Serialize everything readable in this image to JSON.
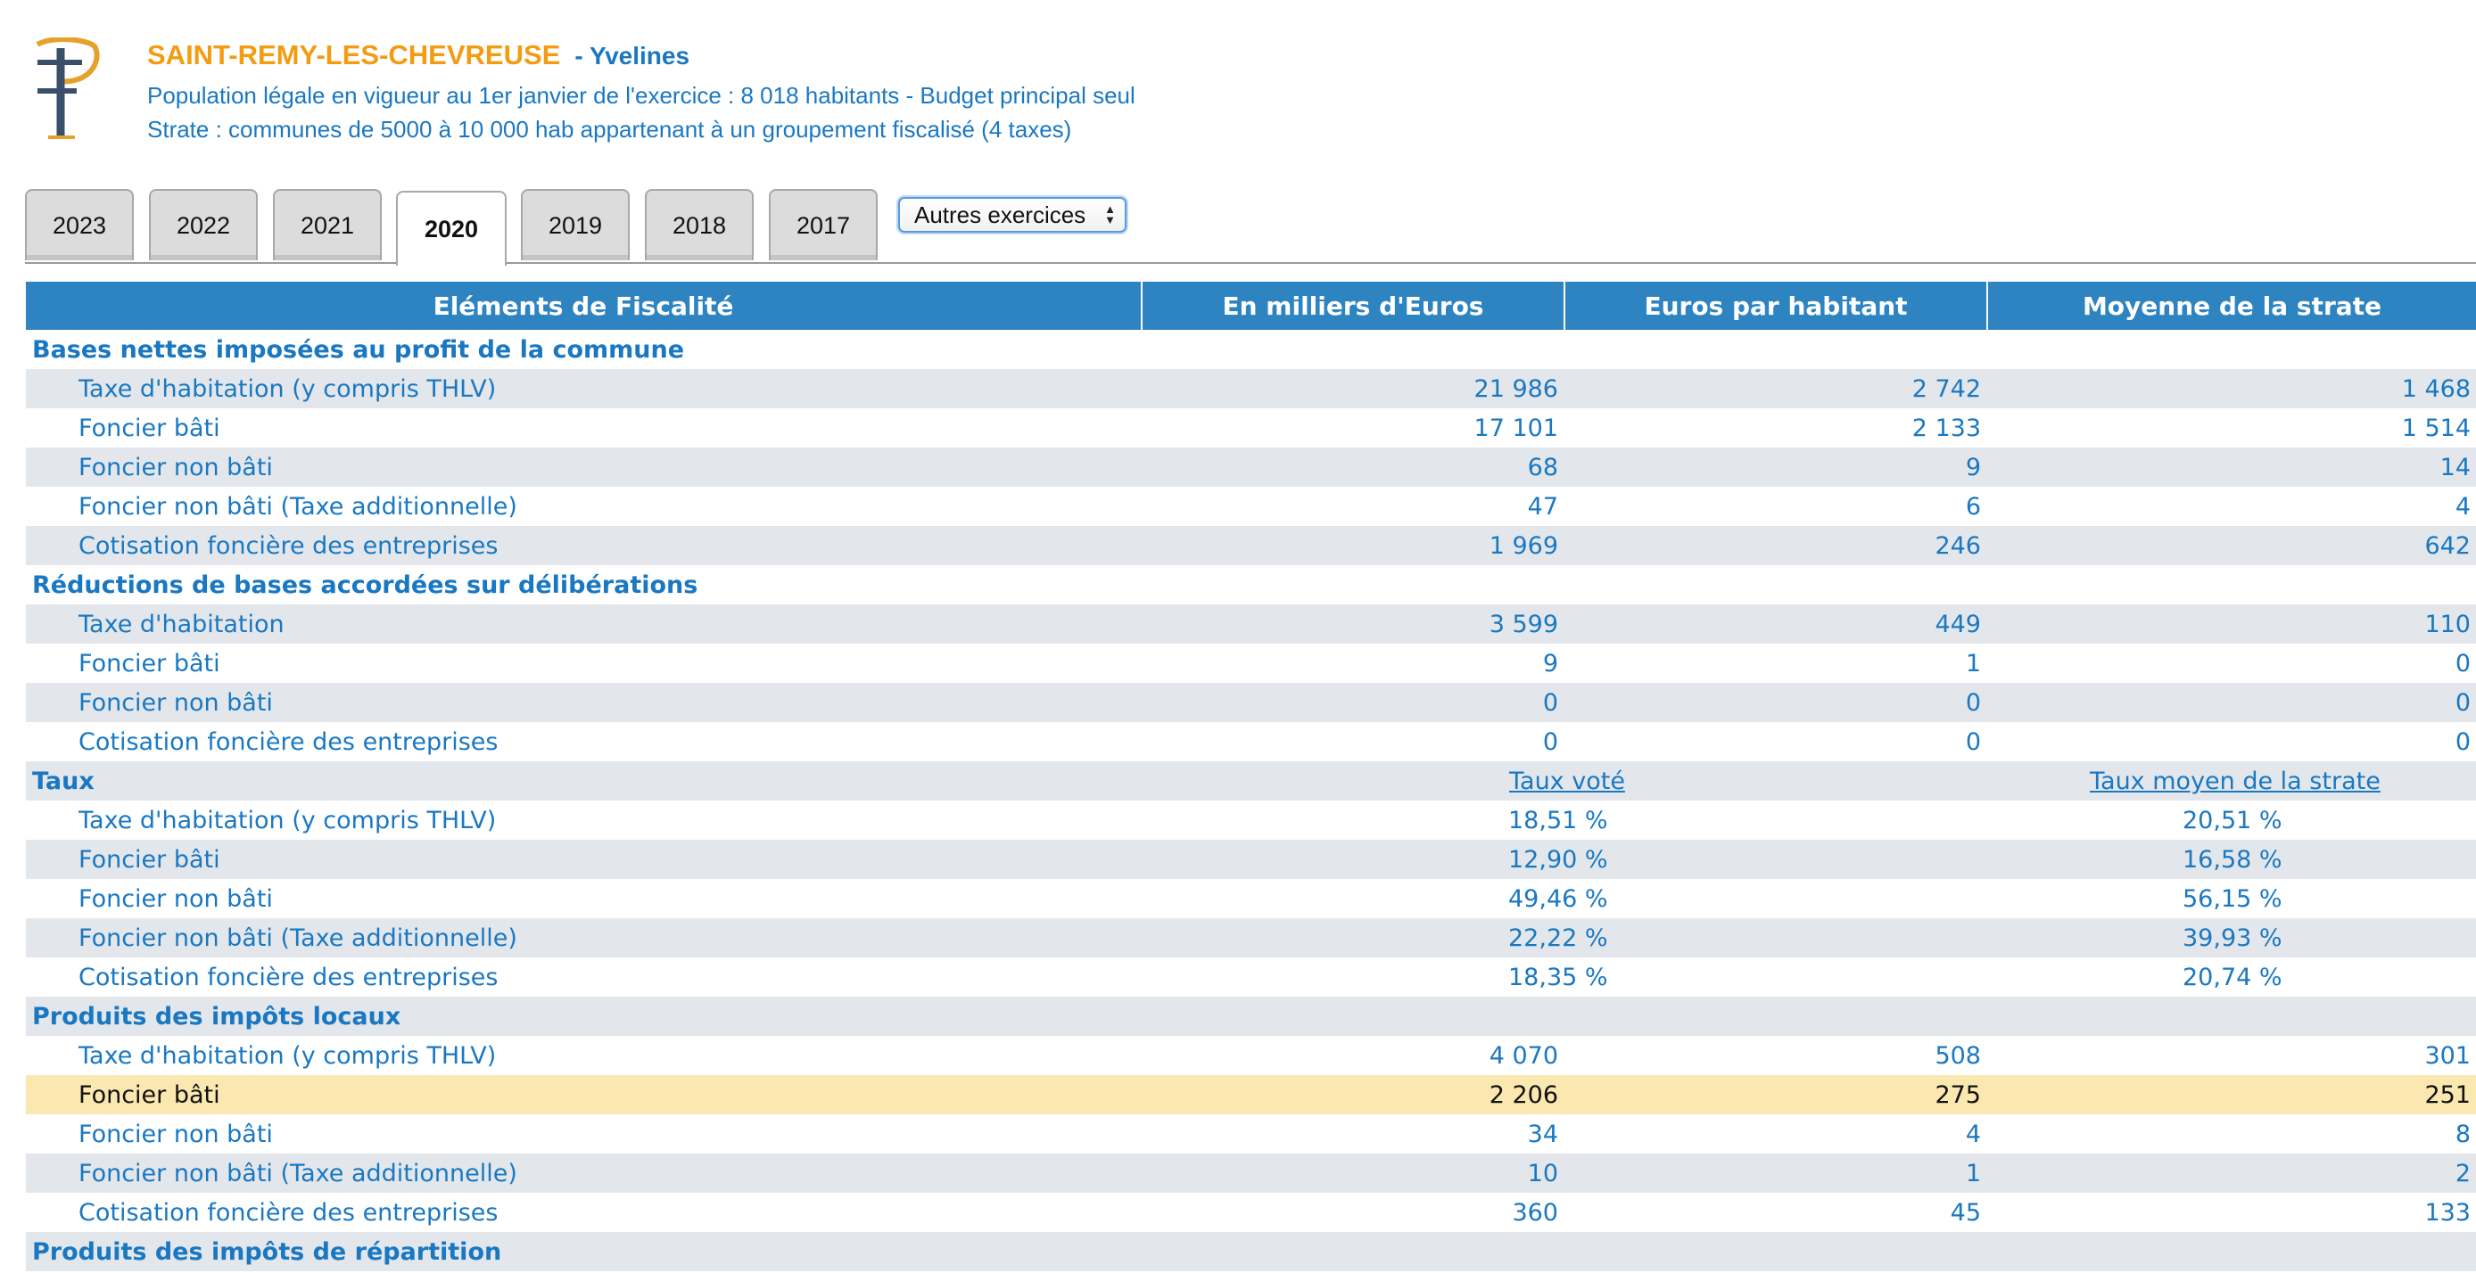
{
  "header": {
    "commune": "SAINT-REMY-LES-CHEVREUSE",
    "departement": "- Yvelines",
    "population_line": "Population légale en vigueur au 1er janvier de l'exercice : 8 018 habitants - Budget principal seul",
    "strate_line": "Strate : communes de 5000 à 10 000 hab appartenant à un groupement fiscalisé (4 taxes)"
  },
  "tabs": [
    {
      "label": "2023",
      "active": false
    },
    {
      "label": "2022",
      "active": false
    },
    {
      "label": "2021",
      "active": false
    },
    {
      "label": "2020",
      "active": true
    },
    {
      "label": "2019",
      "active": false
    },
    {
      "label": "2018",
      "active": false
    },
    {
      "label": "2017",
      "active": false
    }
  ],
  "select": {
    "label": "Autres exercices"
  },
  "table": {
    "headers": [
      "Eléments de Fiscalité",
      "En milliers d'Euros",
      "Euros par habitant",
      "Moyenne de la strate"
    ],
    "bases": {
      "title": "Bases nettes imposées au profit de la commune",
      "rows": [
        [
          "Taxe d'habitation (y compris THLV)",
          "21 986",
          "2 742",
          "1 468"
        ],
        [
          "Foncier bâti",
          "17 101",
          "2 133",
          "1 514"
        ],
        [
          "Foncier non bâti",
          "68",
          "9",
          "14"
        ],
        [
          "Foncier non bâti (Taxe additionnelle)",
          "47",
          "6",
          "4"
        ],
        [
          "Cotisation foncière des entreprises",
          "1 969",
          "246",
          "642"
        ]
      ]
    },
    "reductions": {
      "title": "Réductions de bases accordées sur délibérations",
      "rows": [
        [
          "Taxe d'habitation",
          "3 599",
          "449",
          "110"
        ],
        [
          "Foncier bâti",
          "9",
          "1",
          "0"
        ],
        [
          "Foncier non bâti",
          "0",
          "0",
          "0"
        ],
        [
          "Cotisation foncière des entreprises",
          "0",
          "0",
          "0"
        ]
      ]
    },
    "taux": {
      "title": "Taux",
      "link_vote": "Taux voté",
      "link_strate": "Taux moyen de la strate",
      "rows": [
        [
          "Taxe d'habitation (y compris THLV)",
          "18,51 %",
          "20,51 %"
        ],
        [
          "Foncier bâti",
          "12,90 %",
          "16,58 %"
        ],
        [
          "Foncier non bâti",
          "49,46 %",
          "56,15 %"
        ],
        [
          "Foncier non bâti (Taxe additionnelle)",
          "22,22 %",
          "39,93 %"
        ],
        [
          "Cotisation foncière des entreprises",
          "18,35 %",
          "20,74 %"
        ]
      ]
    },
    "produits": {
      "title": "Produits des impôts locaux",
      "rows": [
        [
          "Taxe d'habitation (y compris THLV)",
          "4 070",
          "508",
          "301"
        ],
        [
          "Foncier bâti",
          "2 206",
          "275",
          "251"
        ],
        [
          "Foncier non bâti",
          "34",
          "4",
          "8"
        ],
        [
          "Foncier non bâti (Taxe additionnelle)",
          "10",
          "1",
          "2"
        ],
        [
          "Cotisation foncière des entreprises",
          "360",
          "45",
          "133"
        ]
      ]
    },
    "repartition": {
      "title": "Produits des impôts de répartition"
    }
  },
  "colors": {
    "header_blue": "#2d84c0",
    "text_blue": "#1a78c2",
    "commune_orange": "#f39c12",
    "highlight_row": "#fbe8b0",
    "stripe_grey": "#e3e7ec"
  }
}
